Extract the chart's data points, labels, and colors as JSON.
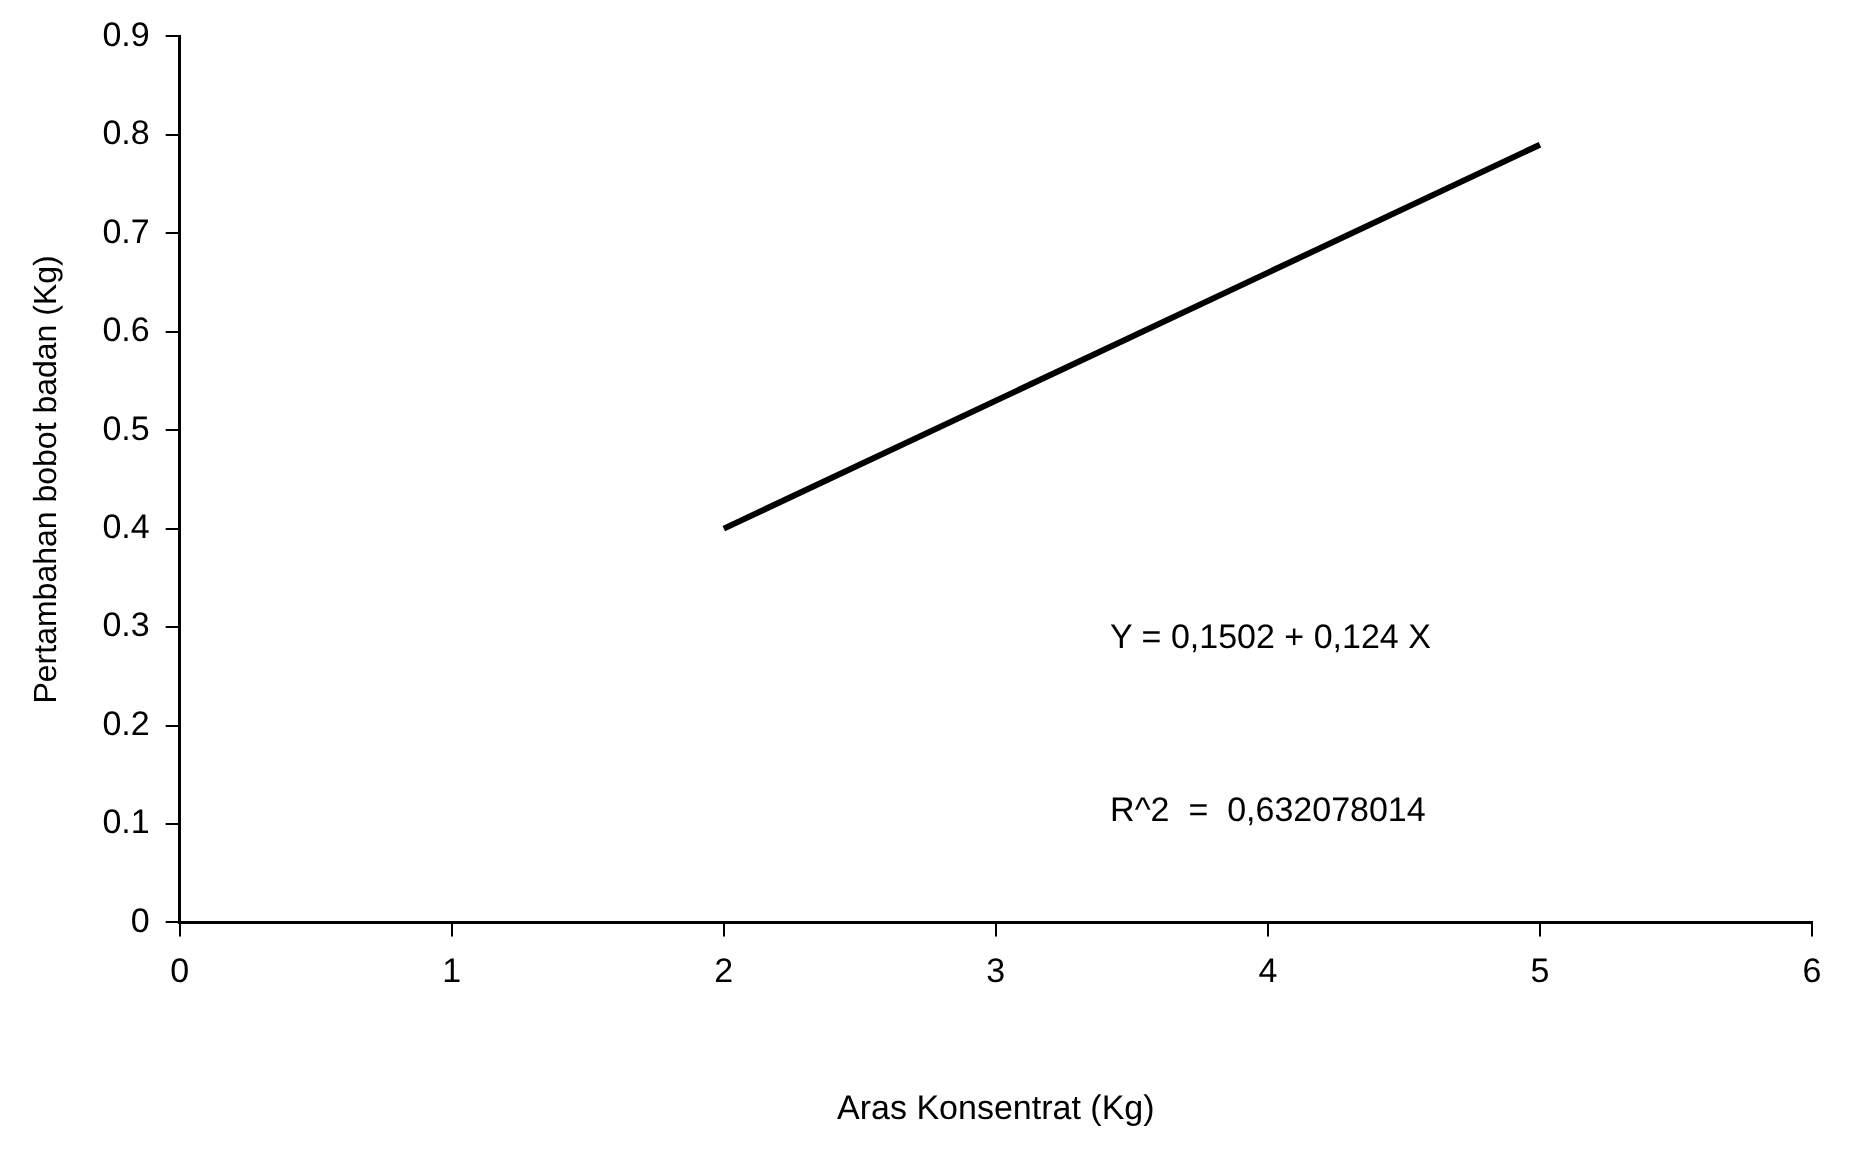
{
  "chart_data": {
    "type": "line",
    "xlabel": "Aras Konsentrat (Kg)",
    "ylabel": "Pertambahan bobot badan (Kg)",
    "series": [
      {
        "color": "#000000",
        "x": [
          2,
          5
        ],
        "values": [
          0.4,
          0.79
        ]
      }
    ],
    "xlim": [
      0,
      6
    ],
    "xticks": [
      0,
      1,
      2,
      3,
      4,
      5,
      6
    ],
    "ylim": [
      0,
      0.9
    ],
    "yticks": [
      0,
      0.1,
      0.2,
      0.3,
      0.4,
      0.5,
      0.6,
      0.7,
      0.8,
      0.9
    ],
    "grid": false,
    "legend": false,
    "marker": "none",
    "line_style": "solid",
    "annotations": [
      "Y = 0,1502 + 0,124 X",
      "R^2  =  0,632078014"
    ]
  }
}
